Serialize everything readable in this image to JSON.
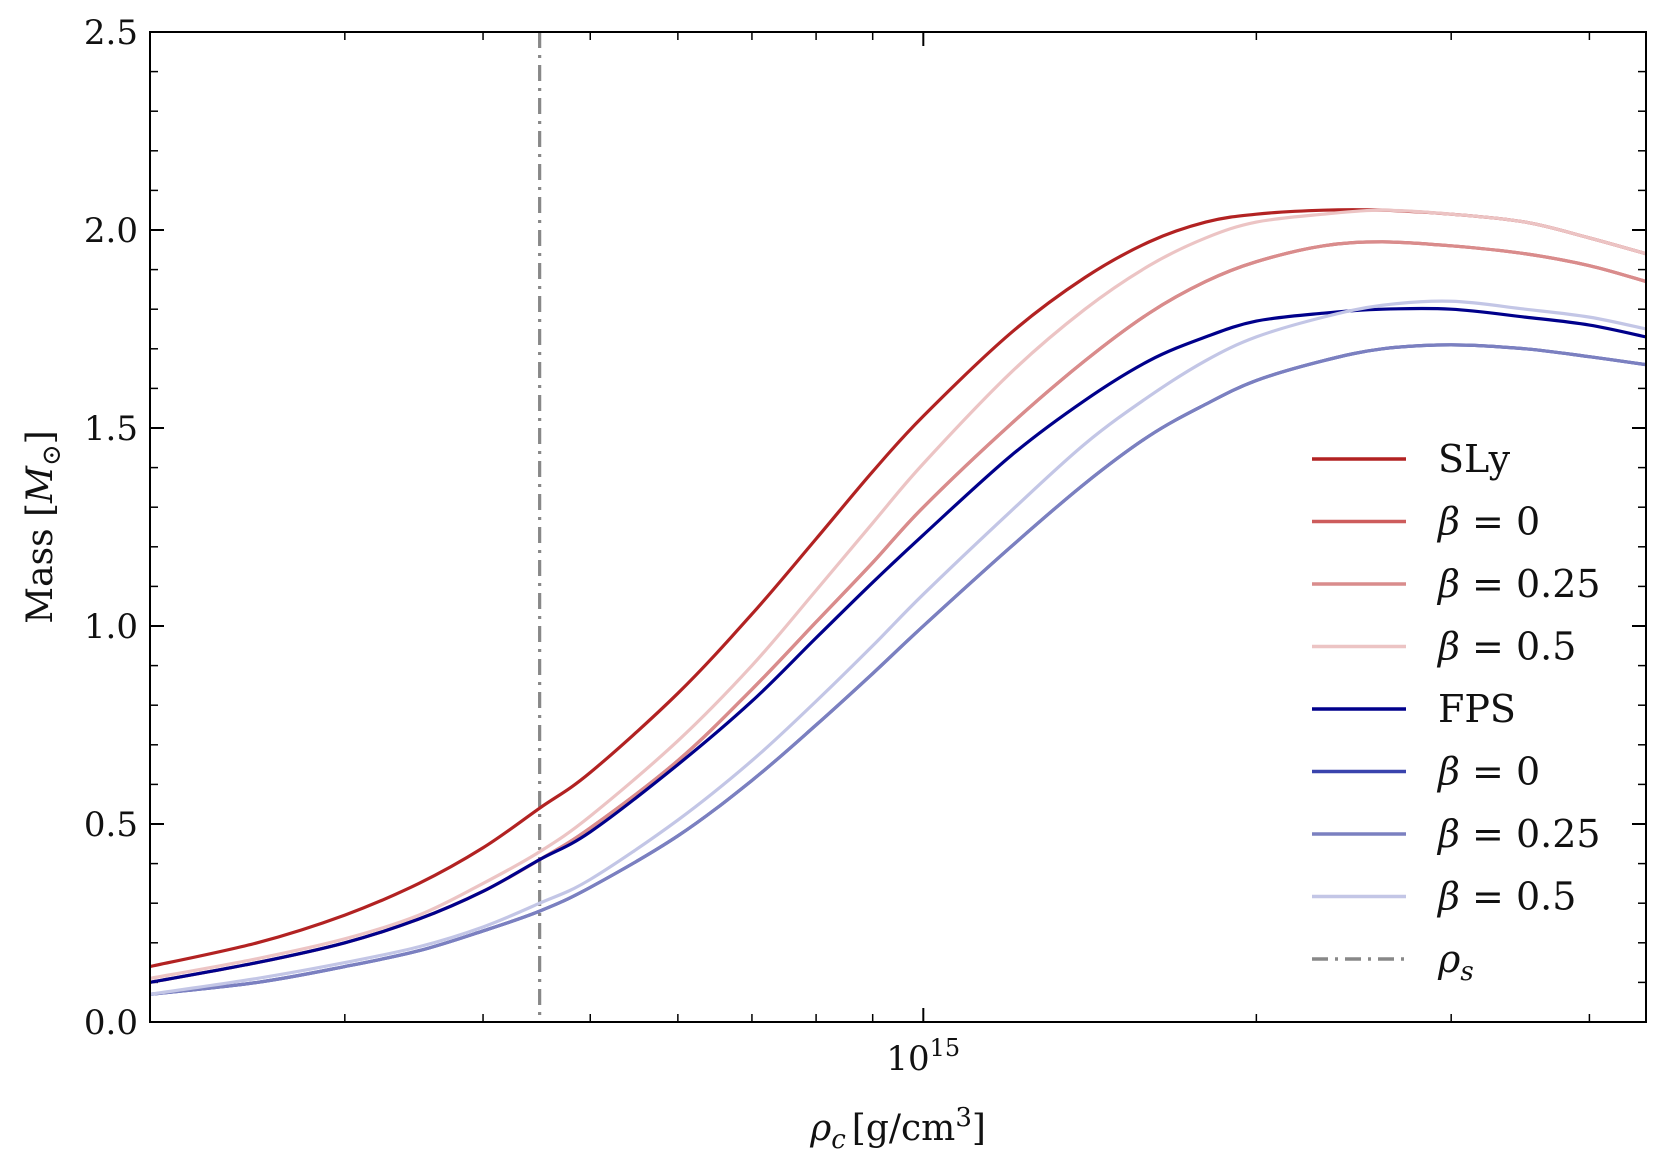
{
  "chart_data": {
    "type": "line",
    "title": "",
    "xlabel": "ρc [g/cm3]",
    "xlabel_parts": {
      "symbol": "ρ",
      "subscript": "c",
      "unit": "[g/cm",
      "unit_exp": "3",
      "unit_close": "]"
    },
    "ylabel": "Mass [M⊙]",
    "ylabel_parts": {
      "text": "Mass [",
      "symbol": "M",
      "subscript": "⊙",
      "close": "]"
    },
    "xscale": "log",
    "xlim": [
      200000000000000.0,
      4500000000000000.0
    ],
    "ylim": [
      0.0,
      2.5
    ],
    "x_major_ticks": [
      {
        "value": 1000000000000000.0,
        "base": "10",
        "exp": "15"
      }
    ],
    "x_minor_ticks": [
      300000000000000.0,
      400000000000000.0,
      500000000000000.0,
      600000000000000.0,
      700000000000000.0,
      800000000000000.0,
      900000000000000.0,
      2000000000000000.0,
      3000000000000000.0,
      4000000000000000.0
    ],
    "y_ticks": [
      {
        "value": 0.0,
        "label": "0.0"
      },
      {
        "value": 0.5,
        "label": "0.5"
      },
      {
        "value": 1.0,
        "label": "1.0"
      },
      {
        "value": 1.5,
        "label": "1.5"
      },
      {
        "value": 2.0,
        "label": "2.0"
      },
      {
        "value": 2.5,
        "label": "2.5"
      }
    ],
    "legend_placement": "center-right",
    "series": [
      {
        "name": "SLy",
        "label_sym": "",
        "label_text": "SLy",
        "color": "#b22222",
        "dash": "solid",
        "x": [
          200000000000000.0,
          250000000000000.0,
          300000000000000.0,
          350000000000000.0,
          400000000000000.0,
          450000000000000.0,
          500000000000000.0,
          600000000000000.0,
          700000000000000.0,
          800000000000000.0,
          900000000000000.0,
          1000000000000000.0,
          1200000000000000.0,
          1400000000000000.0,
          1600000000000000.0,
          1800000000000000.0,
          2000000000000000.0,
          2300000000000000.0,
          2600000000000000.0,
          3000000000000000.0,
          3500000000000000.0,
          4000000000000000.0,
          4500000000000000.0
        ],
        "y": [
          0.14,
          0.2,
          0.27,
          0.35,
          0.44,
          0.54,
          0.63,
          0.83,
          1.03,
          1.22,
          1.39,
          1.53,
          1.74,
          1.88,
          1.97,
          2.02,
          2.04,
          2.05,
          2.05,
          2.04,
          2.02,
          1.98,
          1.94
        ]
      },
      {
        "name": "SLy β = 0",
        "label_sym": "β",
        "label_text": " = 0",
        "color": "#cd5c5c",
        "dash": "solid",
        "x": [
          200000000000000.0,
          250000000000000.0,
          300000000000000.0,
          350000000000000.0,
          400000000000000.0,
          450000000000000.0,
          500000000000000.0,
          600000000000000.0,
          700000000000000.0,
          800000000000000.0,
          900000000000000.0,
          1000000000000000.0,
          1200000000000000.0,
          1400000000000000.0,
          1600000000000000.0,
          1800000000000000.0,
          2000000000000000.0,
          2300000000000000.0,
          2600000000000000.0,
          3000000000000000.0,
          3500000000000000.0,
          4000000000000000.0,
          4500000000000000.0
        ],
        "y": [
          0.1,
          0.15,
          0.2,
          0.26,
          0.33,
          0.41,
          0.49,
          0.66,
          0.84,
          1.01,
          1.16,
          1.3,
          1.51,
          1.67,
          1.79,
          1.87,
          1.92,
          1.96,
          1.97,
          1.96,
          1.94,
          1.91,
          1.87
        ]
      },
      {
        "name": "SLy β = 0.25",
        "label_sym": "β",
        "label_text": " = 0.25",
        "color": "#d98c8c",
        "dash": "solid",
        "x": [
          200000000000000.0,
          250000000000000.0,
          300000000000000.0,
          350000000000000.0,
          400000000000000.0,
          450000000000000.0,
          500000000000000.0,
          600000000000000.0,
          700000000000000.0,
          800000000000000.0,
          900000000000000.0,
          1000000000000000.0,
          1200000000000000.0,
          1400000000000000.0,
          1600000000000000.0,
          1800000000000000.0,
          2000000000000000.0,
          2300000000000000.0,
          2600000000000000.0,
          3000000000000000.0,
          3500000000000000.0,
          4000000000000000.0,
          4500000000000000.0
        ],
        "y": [
          0.1,
          0.15,
          0.2,
          0.26,
          0.33,
          0.41,
          0.49,
          0.66,
          0.84,
          1.01,
          1.16,
          1.3,
          1.51,
          1.67,
          1.79,
          1.87,
          1.92,
          1.96,
          1.97,
          1.96,
          1.94,
          1.91,
          1.87
        ]
      },
      {
        "name": "SLy β = 0.5",
        "label_sym": "β",
        "label_text": " = 0.5",
        "color": "#ecc4c4",
        "dash": "solid",
        "x": [
          200000000000000.0,
          250000000000000.0,
          300000000000000.0,
          350000000000000.0,
          400000000000000.0,
          450000000000000.0,
          500000000000000.0,
          600000000000000.0,
          700000000000000.0,
          800000000000000.0,
          900000000000000.0,
          1000000000000000.0,
          1200000000000000.0,
          1400000000000000.0,
          1600000000000000.0,
          1800000000000000.0,
          2000000000000000.0,
          2300000000000000.0,
          2600000000000000.0,
          3000000000000000.0,
          3500000000000000.0,
          4000000000000000.0,
          4500000000000000.0
        ],
        "y": [
          0.11,
          0.16,
          0.21,
          0.27,
          0.35,
          0.43,
          0.52,
          0.71,
          0.9,
          1.09,
          1.26,
          1.41,
          1.64,
          1.8,
          1.91,
          1.98,
          2.02,
          2.04,
          2.05,
          2.04,
          2.02,
          1.98,
          1.94
        ]
      },
      {
        "name": "FPS",
        "label_sym": "",
        "label_text": "FPS",
        "color": "#00008b",
        "dash": "solid",
        "x": [
          200000000000000.0,
          250000000000000.0,
          300000000000000.0,
          350000000000000.0,
          400000000000000.0,
          450000000000000.0,
          500000000000000.0,
          600000000000000.0,
          700000000000000.0,
          800000000000000.0,
          900000000000000.0,
          1000000000000000.0,
          1200000000000000.0,
          1400000000000000.0,
          1600000000000000.0,
          1800000000000000.0,
          2000000000000000.0,
          2300000000000000.0,
          2600000000000000.0,
          3000000000000000.0,
          3500000000000000.0,
          4000000000000000.0,
          4500000000000000.0
        ],
        "y": [
          0.1,
          0.15,
          0.2,
          0.26,
          0.33,
          0.41,
          0.48,
          0.65,
          0.81,
          0.97,
          1.11,
          1.23,
          1.43,
          1.57,
          1.67,
          1.73,
          1.77,
          1.79,
          1.8,
          1.8,
          1.78,
          1.76,
          1.73
        ]
      },
      {
        "name": "FPS β = 0",
        "label_sym": "β",
        "label_text": " = 0",
        "color": "#3a44ad",
        "dash": "solid",
        "x": [
          200000000000000.0,
          250000000000000.0,
          300000000000000.0,
          350000000000000.0,
          400000000000000.0,
          450000000000000.0,
          500000000000000.0,
          600000000000000.0,
          700000000000000.0,
          800000000000000.0,
          900000000000000.0,
          1000000000000000.0,
          1200000000000000.0,
          1400000000000000.0,
          1600000000000000.0,
          1800000000000000.0,
          2000000000000000.0,
          2300000000000000.0,
          2600000000000000.0,
          3000000000000000.0,
          3500000000000000.0,
          4000000000000000.0,
          4500000000000000.0
        ],
        "y": [
          0.07,
          0.1,
          0.14,
          0.18,
          0.23,
          0.28,
          0.34,
          0.47,
          0.61,
          0.75,
          0.88,
          1.0,
          1.2,
          1.36,
          1.48,
          1.56,
          1.62,
          1.67,
          1.7,
          1.71,
          1.7,
          1.68,
          1.66
        ]
      },
      {
        "name": "FPS β = 0.25",
        "label_sym": "β",
        "label_text": " = 0.25",
        "color": "#7b80c0",
        "dash": "solid",
        "x": [
          200000000000000.0,
          250000000000000.0,
          300000000000000.0,
          350000000000000.0,
          400000000000000.0,
          450000000000000.0,
          500000000000000.0,
          600000000000000.0,
          700000000000000.0,
          800000000000000.0,
          900000000000000.0,
          1000000000000000.0,
          1200000000000000.0,
          1400000000000000.0,
          1600000000000000.0,
          1800000000000000.0,
          2000000000000000.0,
          2300000000000000.0,
          2600000000000000.0,
          3000000000000000.0,
          3500000000000000.0,
          4000000000000000.0,
          4500000000000000.0
        ],
        "y": [
          0.07,
          0.1,
          0.14,
          0.18,
          0.23,
          0.28,
          0.34,
          0.47,
          0.61,
          0.75,
          0.88,
          1.0,
          1.2,
          1.36,
          1.48,
          1.56,
          1.62,
          1.67,
          1.7,
          1.71,
          1.7,
          1.68,
          1.66
        ]
      },
      {
        "name": "FPS β = 0.5",
        "label_sym": "β",
        "label_text": " = 0.5",
        "color": "#c3c6e6",
        "dash": "solid",
        "x": [
          200000000000000.0,
          250000000000000.0,
          300000000000000.0,
          350000000000000.0,
          400000000000000.0,
          450000000000000.0,
          500000000000000.0,
          600000000000000.0,
          700000000000000.0,
          800000000000000.0,
          900000000000000.0,
          1000000000000000.0,
          1200000000000000.0,
          1400000000000000.0,
          1600000000000000.0,
          1800000000000000.0,
          2000000000000000.0,
          2300000000000000.0,
          2600000000000000.0,
          3000000000000000.0,
          3500000000000000.0,
          4000000000000000.0,
          4500000000000000.0
        ],
        "y": [
          0.07,
          0.11,
          0.15,
          0.19,
          0.24,
          0.3,
          0.36,
          0.51,
          0.66,
          0.81,
          0.95,
          1.08,
          1.29,
          1.46,
          1.58,
          1.67,
          1.73,
          1.78,
          1.81,
          1.82,
          1.8,
          1.78,
          1.75
        ]
      }
    ],
    "vline": {
      "name": "ρs",
      "label_sym": "ρ",
      "label_sub": "s",
      "x": 450000000000000.0,
      "color": "#888888",
      "dash": "dashdot"
    }
  }
}
